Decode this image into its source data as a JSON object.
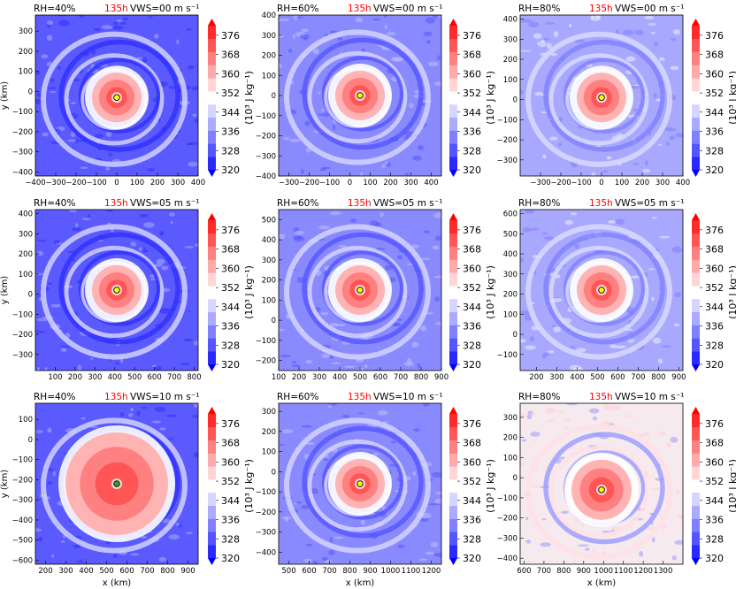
{
  "figure": {
    "colorbar": {
      "ticks": [
        "320",
        "328",
        "336",
        "344",
        "352",
        "360",
        "368",
        "376"
      ],
      "label": "(10³ J kg⁻¹)",
      "min": 320,
      "max": 380,
      "colors": [
        "#0000ff",
        "#2a2aff",
        "#5555ff",
        "#8080ff",
        "#aaaaff",
        "#d5d5ff",
        "#ffffff",
        "#ffd5d5",
        "#ffaaaa",
        "#ff8080",
        "#ff5555",
        "#ff2a2a",
        "#ff0000"
      ]
    },
    "y_label": "y (km)",
    "x_label": "x (km)",
    "time_label": "135h",
    "time_color": "#ff0000",
    "marker_colors": {
      "yellow": "#ffff00",
      "green": "#22aa22"
    }
  },
  "panels": [
    {
      "id": "p11",
      "rh": "RH=40%",
      "vws": "VWS=00 m s⁻¹",
      "xlim": [
        -400,
        400
      ],
      "ylim": [
        -420,
        380
      ],
      "xticks": [
        "−400",
        "−300",
        "−200",
        "−100",
        "0",
        "100",
        "200",
        "300",
        "400"
      ],
      "xtick_vals": [
        -400,
        -300,
        -200,
        -100,
        0,
        100,
        200,
        300,
        400
      ],
      "yticks": [
        "−400",
        "−300",
        "−200",
        "−100",
        "0",
        "100",
        "200",
        "300"
      ],
      "ytick_vals": [
        -400,
        -300,
        -200,
        -100,
        0,
        100,
        200,
        300
      ],
      "center": [
        0,
        -30
      ],
      "marker": "yellow",
      "ylabel": true,
      "xlabel": false,
      "env": "blue-dark"
    },
    {
      "id": "p12",
      "rh": "RH=60%",
      "vws": "VWS=00 m s⁻¹",
      "xlim": [
        -350,
        450
      ],
      "ylim": [
        -400,
        400
      ],
      "xticks": [
        "−300",
        "−200",
        "−100",
        "0",
        "100",
        "200",
        "300",
        "400"
      ],
      "xtick_vals": [
        -300,
        -200,
        -100,
        0,
        100,
        200,
        300,
        400
      ],
      "yticks": [
        "−400",
        "−300",
        "−200",
        "−100",
        "0",
        "100",
        "200",
        "300",
        "400"
      ],
      "ytick_vals": [
        -400,
        -300,
        -200,
        -100,
        0,
        100,
        200,
        300,
        400
      ],
      "center": [
        50,
        0
      ],
      "marker": "yellow",
      "ylabel": false,
      "xlabel": false,
      "env": "blue-mid"
    },
    {
      "id": "p13",
      "rh": "RH=80%",
      "vws": "VWS=00 m s⁻¹",
      "xlim": [
        -400,
        400
      ],
      "ylim": [
        -380,
        420
      ],
      "xticks": [
        "−300",
        "−200",
        "−100",
        "0",
        "100",
        "200",
        "300",
        "400"
      ],
      "xtick_vals": [
        -300,
        -200,
        -100,
        0,
        100,
        200,
        300,
        400
      ],
      "yticks": [
        "−300",
        "−200",
        "−100",
        "0",
        "100",
        "200",
        "300",
        "400"
      ],
      "ytick_vals": [
        -300,
        -200,
        -100,
        0,
        100,
        200,
        300,
        400
      ],
      "center": [
        0,
        10
      ],
      "marker": "yellow",
      "ylabel": false,
      "xlabel": false,
      "env": "blue-light"
    },
    {
      "id": "p21",
      "rh": "RH=40%",
      "vws": "VWS=05 m s⁻¹",
      "xlim": [
        0,
        820
      ],
      "ylim": [
        -380,
        420
      ],
      "xticks": [
        "100",
        "200",
        "300",
        "400",
        "500",
        "600",
        "700",
        "800"
      ],
      "xtick_vals": [
        100,
        200,
        300,
        400,
        500,
        600,
        700,
        800
      ],
      "yticks": [
        "−300",
        "−200",
        "−100",
        "0",
        "100",
        "200",
        "300",
        "400"
      ],
      "ytick_vals": [
        -300,
        -200,
        -100,
        0,
        100,
        200,
        300,
        400
      ],
      "center": [
        410,
        20
      ],
      "marker": "yellow",
      "ylabel": true,
      "xlabel": false,
      "env": "blue-dark"
    },
    {
      "id": "p22",
      "rh": "RH=60%",
      "vws": "VWS=05 m s⁻¹",
      "xlim": [
        100,
        900
      ],
      "ylim": [
        -250,
        550
      ],
      "xticks": [
        "100",
        "200",
        "300",
        "400",
        "500",
        "600",
        "700",
        "800",
        "900"
      ],
      "xtick_vals": [
        100,
        200,
        300,
        400,
        500,
        600,
        700,
        800,
        900
      ],
      "yticks": [
        "−200",
        "−100",
        "0",
        "100",
        "200",
        "300",
        "400",
        "500"
      ],
      "ytick_vals": [
        -200,
        -100,
        0,
        100,
        200,
        300,
        400,
        500
      ],
      "center": [
        500,
        150
      ],
      "marker": "yellow",
      "ylabel": false,
      "xlabel": false,
      "env": "blue-mid"
    },
    {
      "id": "p23",
      "rh": "RH=80%",
      "vws": "VWS=05 m s⁻¹",
      "xlim": [
        120,
        920
      ],
      "ylim": [
        -180,
        620
      ],
      "xticks": [
        "200",
        "300",
        "400",
        "500",
        "600",
        "700",
        "800",
        "900"
      ],
      "xtick_vals": [
        200,
        300,
        400,
        500,
        600,
        700,
        800,
        900
      ],
      "yticks": [
        "−100",
        "0",
        "100",
        "200",
        "300",
        "400",
        "500",
        "600"
      ],
      "ytick_vals": [
        -100,
        0,
        100,
        200,
        300,
        400,
        500,
        600
      ],
      "center": [
        520,
        220
      ],
      "marker": "yellow",
      "ylabel": false,
      "xlabel": false,
      "env": "blue-light"
    },
    {
      "id": "p31",
      "rh": "RH=40%",
      "vws": "VWS=10 m s⁻¹",
      "xlim": [
        150,
        950
      ],
      "ylim": [
        -620,
        180
      ],
      "xticks": [
        "200",
        "300",
        "400",
        "500",
        "600",
        "700",
        "800",
        "900"
      ],
      "xtick_vals": [
        200,
        300,
        400,
        500,
        600,
        700,
        800,
        900
      ],
      "yticks": [
        "−600",
        "−500",
        "−400",
        "−300",
        "−200",
        "−100",
        "0",
        "100"
      ],
      "ytick_vals": [
        -600,
        -500,
        -400,
        -300,
        -200,
        -100,
        0,
        100
      ],
      "center": [
        550,
        -220
      ],
      "marker": "green",
      "ylabel": true,
      "xlabel": true,
      "env": "blue-dark"
    },
    {
      "id": "p32",
      "rh": "RH=60%",
      "vws": "VWS=10 m s⁻¹",
      "xlim": [
        450,
        1250
      ],
      "ylim": [
        -460,
        340
      ],
      "xticks": [
        "500",
        "600",
        "700",
        "800",
        "900",
        "1000",
        "1100",
        "1200"
      ],
      "xtick_vals": [
        500,
        600,
        700,
        800,
        900,
        1000,
        1100,
        1200
      ],
      "yticks": [
        "−400",
        "−300",
        "−200",
        "−100",
        "0",
        "100",
        "200",
        "300"
      ],
      "ytick_vals": [
        -400,
        -300,
        -200,
        -100,
        0,
        100,
        200,
        300
      ],
      "center": [
        850,
        -60
      ],
      "marker": "yellow",
      "ylabel": false,
      "xlabel": true,
      "env": "blue-mid"
    },
    {
      "id": "p33",
      "rh": "RH=80%",
      "vws": "VWS=10 m s⁻¹",
      "xlim": [
        580,
        1400
      ],
      "ylim": [
        -430,
        370
      ],
      "xticks": [
        "600",
        "700",
        "800",
        "900",
        "1000",
        "1100",
        "1200",
        "1300"
      ],
      "xtick_vals": [
        600,
        700,
        800,
        900,
        1000,
        1100,
        1200,
        1300
      ],
      "yticks": [
        "−400",
        "−300",
        "−200",
        "−100",
        "0",
        "100",
        "200",
        "300"
      ],
      "ytick_vals": [
        -400,
        -300,
        -200,
        -100,
        0,
        100,
        200,
        300
      ],
      "center": [
        990,
        -60
      ],
      "marker": "yellow",
      "ylabel": false,
      "xlabel": true,
      "env": "pink"
    }
  ],
  "chart_data": {
    "type": "heatmap",
    "variable_units": "(10³ J kg⁻¹)",
    "colorbar_ticks": [
      320,
      328,
      336,
      344,
      352,
      360,
      368,
      376
    ],
    "time": "135h",
    "rows": [
      "VWS=00 m s⁻¹",
      "VWS=05 m s⁻¹",
      "VWS=10 m s⁻¹"
    ],
    "columns": [
      "RH=40%",
      "RH=60%",
      "RH=80%"
    ],
    "xlabel": "x (km)",
    "ylabel": "y (km)"
  }
}
